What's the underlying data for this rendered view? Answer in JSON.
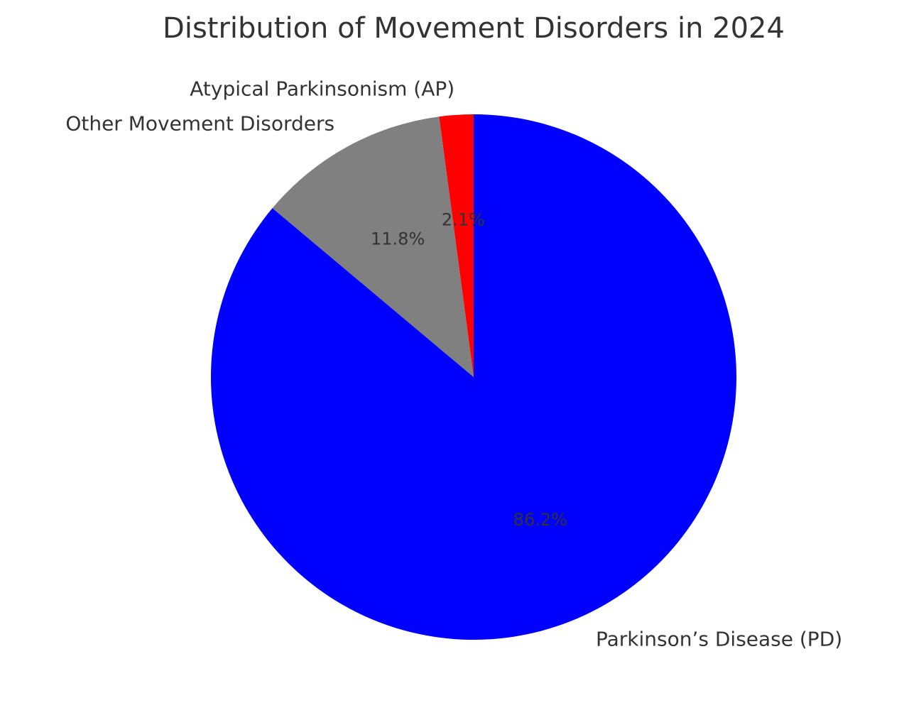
{
  "chart_data": {
    "type": "pie",
    "title": "Distribution of Movement Disorders in 2024",
    "start_angle_deg": 90,
    "direction": "clockwise",
    "slices": [
      {
        "label": "Parkinson’s Disease (PD)",
        "value": 86.2,
        "pct_label": "86.2%",
        "color": "#0000ff"
      },
      {
        "label": "Other Movement Disorders",
        "value": 11.8,
        "pct_label": "11.8%",
        "color": "#808080"
      },
      {
        "label": "Atypical Parkinsonism (AP)",
        "value": 2.1,
        "pct_label": "2.1%",
        "color": "#ff0000"
      }
    ]
  }
}
